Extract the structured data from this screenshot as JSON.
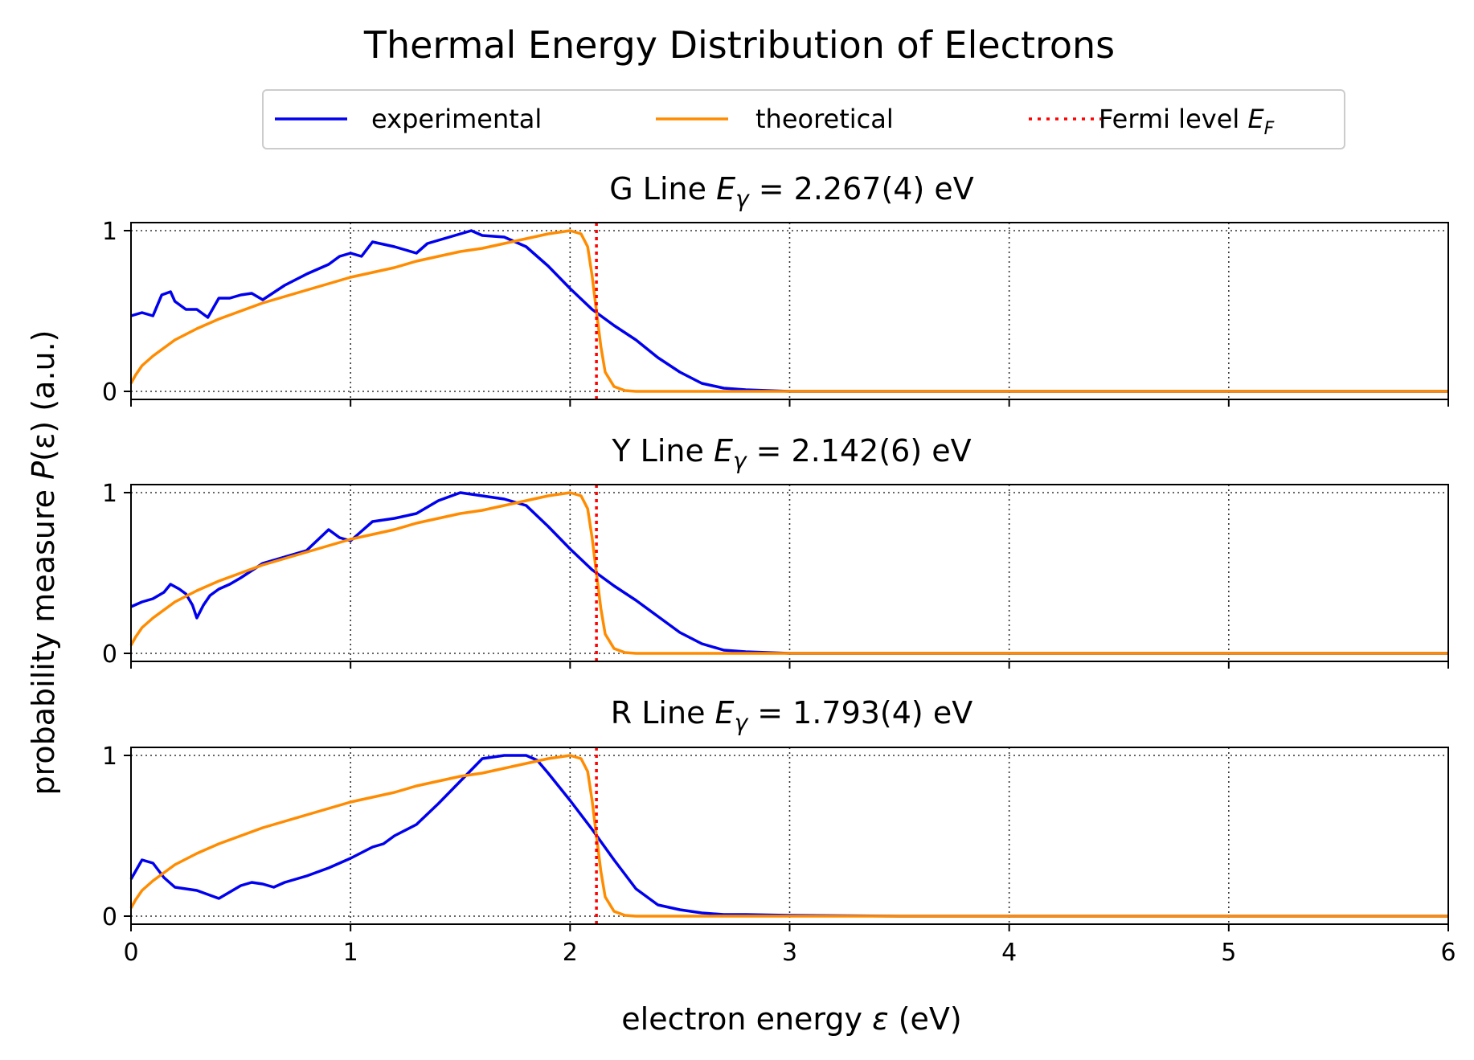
{
  "chart_data": {
    "type": "line",
    "title": "Thermal Energy Distribution of Electrons",
    "xlabel": {
      "main": "electron energy ",
      "sym": "ε",
      "unit": " (eV)"
    },
    "ylabel": {
      "main": "probability measure ",
      "sym": "P",
      "arg": "(ε)",
      "unit": " (a.u.)"
    },
    "xlim": [
      0,
      6
    ],
    "ylim": [
      -0.05,
      1.05
    ],
    "xticks": [
      "0",
      "1",
      "2",
      "3",
      "4",
      "5",
      "6"
    ],
    "yticks": [
      "0",
      "1"
    ],
    "grid": "dotted",
    "fermi_level": 2.12,
    "legend": {
      "placement": "top-center",
      "entries": [
        {
          "label": "experimental",
          "color": "#0000ee",
          "style": "solid"
        },
        {
          "label": "theoretical",
          "color": "#ff8c00",
          "style": "solid"
        },
        {
          "label_main": "Fermi level ",
          "label_sym": "E",
          "label_sub": "F",
          "color": "#ff0000",
          "style": "dotted"
        }
      ]
    },
    "theoretical": {
      "x": [
        0,
        0.02,
        0.05,
        0.1,
        0.2,
        0.3,
        0.4,
        0.5,
        0.6,
        0.7,
        0.8,
        0.9,
        1.0,
        1.1,
        1.2,
        1.3,
        1.4,
        1.5,
        1.6,
        1.7,
        1.8,
        1.9,
        2.0,
        2.05,
        2.08,
        2.1,
        2.12,
        2.14,
        2.16,
        2.2,
        2.25,
        2.3,
        3.0,
        4.0,
        5.0,
        6.0
      ],
      "y": [
        0.05,
        0.1,
        0.16,
        0.22,
        0.32,
        0.39,
        0.45,
        0.5,
        0.55,
        0.59,
        0.63,
        0.67,
        0.71,
        0.74,
        0.77,
        0.81,
        0.84,
        0.87,
        0.89,
        0.92,
        0.95,
        0.98,
        1.0,
        0.98,
        0.9,
        0.72,
        0.5,
        0.28,
        0.12,
        0.03,
        0.005,
        0.0,
        0.0,
        0.0,
        0.0,
        0.0
      ]
    },
    "panels": [
      {
        "label": "G Line",
        "energy": "2.267(4) eV",
        "experimental": {
          "x": [
            0,
            0.05,
            0.1,
            0.14,
            0.18,
            0.2,
            0.25,
            0.3,
            0.32,
            0.35,
            0.4,
            0.45,
            0.5,
            0.55,
            0.6,
            0.7,
            0.8,
            0.9,
            0.95,
            1.0,
            1.05,
            1.1,
            1.2,
            1.25,
            1.3,
            1.35,
            1.4,
            1.5,
            1.55,
            1.6,
            1.7,
            1.8,
            1.9,
            2.0,
            2.1,
            2.2,
            2.3,
            2.4,
            2.5,
            2.6,
            2.7,
            2.8,
            2.9,
            3.0,
            3.2,
            4.0,
            5.0,
            6.0
          ],
          "y": [
            0.47,
            0.49,
            0.47,
            0.6,
            0.62,
            0.56,
            0.51,
            0.51,
            0.49,
            0.46,
            0.58,
            0.58,
            0.6,
            0.61,
            0.57,
            0.66,
            0.73,
            0.79,
            0.84,
            0.86,
            0.84,
            0.93,
            0.9,
            0.88,
            0.86,
            0.92,
            0.94,
            0.98,
            1.0,
            0.97,
            0.96,
            0.9,
            0.78,
            0.64,
            0.51,
            0.41,
            0.32,
            0.21,
            0.12,
            0.05,
            0.02,
            0.01,
            0.005,
            0.0,
            0.0,
            0.0,
            0.0,
            0.0
          ]
        }
      },
      {
        "label": "Y Line",
        "energy": "2.142(6) eV",
        "experimental": {
          "x": [
            0,
            0.05,
            0.1,
            0.15,
            0.18,
            0.22,
            0.25,
            0.28,
            0.3,
            0.33,
            0.36,
            0.4,
            0.45,
            0.5,
            0.6,
            0.7,
            0.8,
            0.9,
            0.95,
            1.0,
            1.05,
            1.1,
            1.15,
            1.2,
            1.3,
            1.4,
            1.5,
            1.6,
            1.7,
            1.8,
            1.9,
            2.0,
            2.1,
            2.2,
            2.3,
            2.4,
            2.5,
            2.6,
            2.7,
            2.8,
            2.9,
            3.0,
            3.2,
            4.0,
            5.0,
            6.0
          ],
          "y": [
            0.29,
            0.32,
            0.34,
            0.38,
            0.43,
            0.4,
            0.37,
            0.3,
            0.22,
            0.3,
            0.36,
            0.4,
            0.43,
            0.47,
            0.56,
            0.6,
            0.64,
            0.77,
            0.72,
            0.7,
            0.76,
            0.82,
            0.83,
            0.84,
            0.87,
            0.95,
            1.0,
            0.98,
            0.96,
            0.92,
            0.79,
            0.65,
            0.52,
            0.42,
            0.33,
            0.23,
            0.13,
            0.06,
            0.02,
            0.01,
            0.005,
            0.0,
            0.0,
            0.0,
            0.0,
            0.0
          ]
        }
      },
      {
        "label": "R Line",
        "energy": "1.793(4) eV",
        "experimental": {
          "x": [
            0,
            0.05,
            0.1,
            0.15,
            0.2,
            0.3,
            0.4,
            0.5,
            0.55,
            0.6,
            0.65,
            0.7,
            0.8,
            0.9,
            1.0,
            1.1,
            1.15,
            1.2,
            1.3,
            1.4,
            1.5,
            1.6,
            1.7,
            1.8,
            1.85,
            1.9,
            2.0,
            2.1,
            2.2,
            2.3,
            2.4,
            2.5,
            2.6,
            2.7,
            2.8,
            3.0,
            3.5,
            4.0,
            5.0,
            6.0
          ],
          "y": [
            0.23,
            0.35,
            0.33,
            0.24,
            0.18,
            0.16,
            0.11,
            0.19,
            0.21,
            0.2,
            0.18,
            0.21,
            0.25,
            0.3,
            0.36,
            0.43,
            0.45,
            0.5,
            0.57,
            0.7,
            0.84,
            0.98,
            1.0,
            1.0,
            0.97,
            0.89,
            0.72,
            0.54,
            0.35,
            0.17,
            0.07,
            0.04,
            0.02,
            0.01,
            0.01,
            0.005,
            0.0,
            0.0,
            0.0,
            0.0
          ]
        }
      }
    ]
  }
}
